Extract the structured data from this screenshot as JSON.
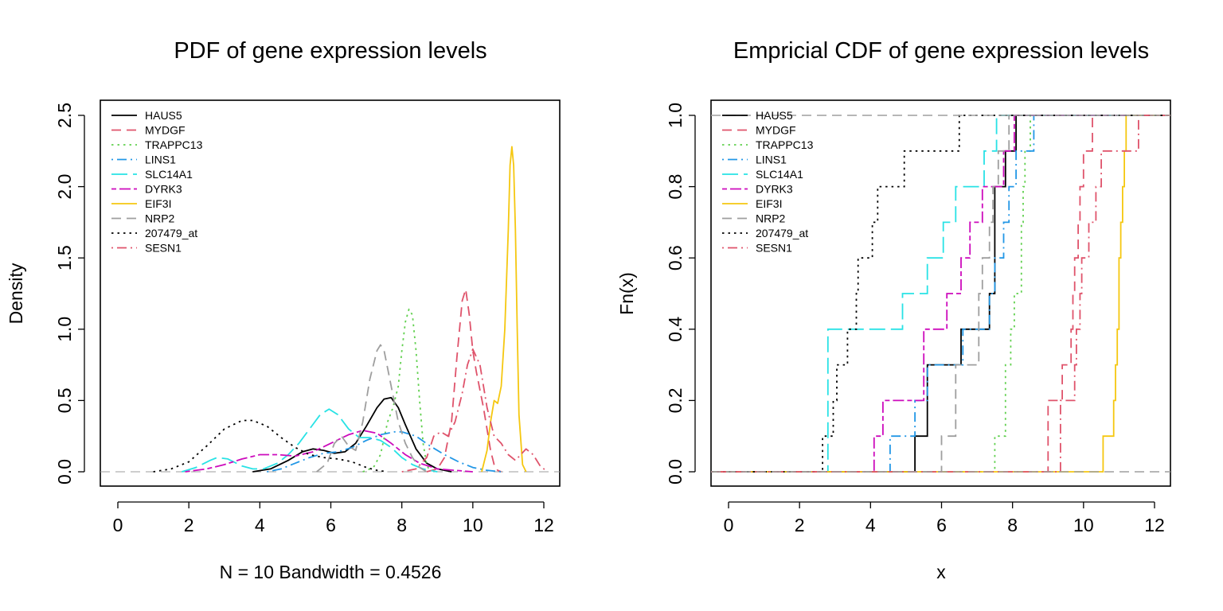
{
  "legend": [
    {
      "name": "HAUS5",
      "color": "#000000",
      "dash": "solid"
    },
    {
      "name": "MYDGF",
      "color": "#DF536B",
      "dash": "dashed"
    },
    {
      "name": "TRAPPC13",
      "color": "#61D04F",
      "dash": "dotted"
    },
    {
      "name": "LINS1",
      "color": "#2297E6",
      "dash": "dotdash"
    },
    {
      "name": "SLC14A1",
      "color": "#28E2E5",
      "dash": "longdash"
    },
    {
      "name": "DYRK3",
      "color": "#CD0BBC",
      "dash": "twodash"
    },
    {
      "name": "EIF3I",
      "color": "#F5C710",
      "dash": "solid"
    },
    {
      "name": "NRP2",
      "color": "#9E9E9E",
      "dash": "dashed"
    },
    {
      "name": "207479_at",
      "color": "#000000",
      "dash": "dotted"
    },
    {
      "name": "SESN1",
      "color": "#DF536B",
      "dash": "dotdash"
    }
  ],
  "chart_data": [
    {
      "type": "line",
      "title": "PDF of gene expression levels",
      "xlabel": "N = 10   Bandwidth = 0.4526",
      "ylabel": "Density",
      "xlim": [
        0,
        12
      ],
      "ylim": [
        0,
        2.5
      ],
      "xticks": [
        0,
        2,
        4,
        6,
        8,
        10,
        12
      ],
      "yticks": [
        0.0,
        0.5,
        1.0,
        1.5,
        2.0,
        2.5
      ],
      "ytick_labels": [
        "0.0",
        "0.5",
        "1.0",
        "1.5",
        "2.0",
        "2.5"
      ],
      "legend_position": "top-left",
      "series": [
        {
          "name": "HAUS5",
          "x": [
            3.8,
            4.3,
            4.8,
            5.2,
            5.5,
            5.8,
            6.1,
            6.4,
            6.7,
            7.0,
            7.3,
            7.5,
            7.7,
            7.9,
            8.1,
            8.4,
            8.7,
            9.0,
            9.4
          ],
          "y": [
            0,
            0.02,
            0.08,
            0.14,
            0.16,
            0.15,
            0.13,
            0.14,
            0.2,
            0.32,
            0.45,
            0.51,
            0.52,
            0.45,
            0.33,
            0.16,
            0.06,
            0.02,
            0
          ]
        },
        {
          "name": "MYDGF",
          "x": [
            8.7,
            9.0,
            9.2,
            9.4,
            9.55,
            9.7,
            9.8,
            9.9,
            10.0,
            10.1,
            10.3,
            10.5,
            10.6,
            10.7,
            10.8
          ],
          "y": [
            0,
            0.02,
            0.1,
            0.35,
            0.8,
            1.2,
            1.28,
            1.1,
            0.85,
            0.7,
            0.45,
            0.15,
            0.05,
            0.01,
            0
          ]
        },
        {
          "name": "TRAPPC13",
          "x": [
            6.9,
            7.2,
            7.4,
            7.6,
            7.75,
            7.9,
            8.0,
            8.1,
            8.2,
            8.3,
            8.4,
            8.5,
            8.6,
            8.7,
            8.8
          ],
          "y": [
            0,
            0.03,
            0.12,
            0.35,
            0.45,
            0.6,
            0.85,
            1.05,
            1.14,
            1.1,
            0.85,
            0.5,
            0.2,
            0.05,
            0
          ]
        },
        {
          "name": "LINS1",
          "x": [
            4.2,
            4.6,
            5.0,
            5.4,
            5.8,
            6.2,
            6.6,
            7.0,
            7.4,
            7.8,
            8.0,
            8.4,
            8.8,
            9.2,
            9.6,
            10.0,
            10.4,
            10.8
          ],
          "y": [
            0,
            0.02,
            0.06,
            0.1,
            0.13,
            0.14,
            0.17,
            0.22,
            0.26,
            0.28,
            0.28,
            0.25,
            0.18,
            0.12,
            0.07,
            0.03,
            0.01,
            0
          ]
        },
        {
          "name": "SLC14A1",
          "x": [
            1.8,
            2.2,
            2.6,
            2.8,
            3.1,
            3.5,
            3.8,
            4.1,
            4.5,
            4.8,
            5.1,
            5.4,
            5.7,
            5.95,
            6.2,
            6.5,
            6.8,
            7.1,
            7.4,
            7.7,
            8.0,
            8.3,
            8.6,
            9.0
          ],
          "y": [
            0,
            0.03,
            0.08,
            0.1,
            0.09,
            0.04,
            0.02,
            0.02,
            0.06,
            0.12,
            0.2,
            0.3,
            0.4,
            0.44,
            0.4,
            0.3,
            0.24,
            0.24,
            0.22,
            0.17,
            0.1,
            0.05,
            0.02,
            0
          ]
        },
        {
          "name": "DYRK3",
          "x": [
            1.9,
            2.5,
            3.0,
            3.5,
            4.0,
            4.5,
            5.0,
            5.5,
            6.0,
            6.5,
            6.9,
            7.3,
            7.7,
            8.1,
            8.5,
            9.0,
            9.5,
            10.0
          ],
          "y": [
            0,
            0.02,
            0.05,
            0.09,
            0.12,
            0.12,
            0.11,
            0.14,
            0.2,
            0.26,
            0.29,
            0.27,
            0.2,
            0.12,
            0.06,
            0.02,
            0.01,
            0
          ]
        },
        {
          "name": "EIF3I",
          "x": [
            10.25,
            10.4,
            10.5,
            10.6,
            10.7,
            10.8,
            10.9,
            11.0,
            11.05,
            11.1,
            11.15,
            11.2,
            11.25,
            11.3,
            11.4,
            11.5
          ],
          "y": [
            0,
            0.15,
            0.35,
            0.5,
            0.48,
            0.6,
            1.0,
            1.7,
            2.15,
            2.28,
            2.15,
            1.7,
            1.0,
            0.4,
            0.05,
            0
          ]
        },
        {
          "name": "NRP2",
          "x": [
            5.6,
            5.9,
            6.1,
            6.3,
            6.5,
            6.7,
            6.9,
            7.1,
            7.3,
            7.4,
            7.5,
            7.7,
            7.9,
            8.1,
            8.3,
            8.5,
            8.7
          ],
          "y": [
            0,
            0.06,
            0.2,
            0.25,
            0.18,
            0.15,
            0.35,
            0.65,
            0.85,
            0.89,
            0.85,
            0.6,
            0.35,
            0.2,
            0.1,
            0.03,
            0
          ]
        },
        {
          "name": "207479_at",
          "x": [
            1.0,
            1.5,
            2.0,
            2.5,
            3.0,
            3.5,
            3.8,
            4.2,
            4.6,
            5.0,
            5.4,
            5.8,
            6.2,
            6.6,
            7.0,
            7.3,
            7.6
          ],
          "y": [
            0,
            0.02,
            0.07,
            0.18,
            0.3,
            0.36,
            0.36,
            0.32,
            0.24,
            0.17,
            0.12,
            0.1,
            0.09,
            0.07,
            0.03,
            0.01,
            0
          ]
        },
        {
          "name": "SESN1",
          "x": [
            8.0,
            8.4,
            8.7,
            8.9,
            9.1,
            9.3,
            9.5,
            9.7,
            9.85,
            10.0,
            10.2,
            10.4,
            10.6,
            10.8,
            11.0,
            11.2,
            11.35,
            11.5,
            11.7,
            11.9,
            12.1
          ],
          "y": [
            0,
            0.02,
            0.1,
            0.25,
            0.28,
            0.25,
            0.35,
            0.55,
            0.75,
            0.86,
            0.75,
            0.45,
            0.25,
            0.2,
            0.12,
            0.08,
            0.12,
            0.16,
            0.12,
            0.04,
            0
          ]
        }
      ]
    },
    {
      "type": "line",
      "title": "Empricial CDF of gene expression levels",
      "xlabel": "x",
      "ylabel": "Fn(x)",
      "xlim": [
        0,
        12
      ],
      "ylim": [
        0,
        1
      ],
      "xticks": [
        0,
        2,
        4,
        6,
        8,
        10,
        12
      ],
      "yticks": [
        0.0,
        0.2,
        0.4,
        0.6,
        0.8,
        1.0
      ],
      "ytick_labels": [
        "0.0",
        "0.2",
        "0.4",
        "0.6",
        "0.8",
        "1.0"
      ],
      "legend_position": "top-left",
      "series": [
        {
          "name": "HAUS5",
          "x": [
            5.25,
            5.6,
            5.6,
            6.55,
            7.35,
            7.5,
            7.5,
            7.5,
            7.8,
            8.1
          ]
        },
        {
          "name": "MYDGF",
          "x": [
            9.0,
            9.0,
            9.4,
            9.65,
            9.7,
            9.75,
            9.85,
            9.9,
            10.0,
            10.25
          ]
        },
        {
          "name": "TRAPPC13",
          "x": [
            7.5,
            7.8,
            7.8,
            7.95,
            8.05,
            8.25,
            8.25,
            8.3,
            8.35,
            8.5
          ]
        },
        {
          "name": "LINS1",
          "x": [
            4.55,
            5.25,
            5.6,
            6.6,
            7.35,
            7.5,
            7.75,
            7.9,
            8.1,
            8.6
          ]
        },
        {
          "name": "SLC14A1",
          "x": [
            2.8,
            2.8,
            2.8,
            2.8,
            4.9,
            5.6,
            6.05,
            6.4,
            7.2,
            7.55
          ]
        },
        {
          "name": "DYRK3",
          "x": [
            4.1,
            4.35,
            5.5,
            5.5,
            6.15,
            6.55,
            6.8,
            7.15,
            7.75,
            8.05
          ]
        },
        {
          "name": "EIF3I",
          "x": [
            10.55,
            10.85,
            10.9,
            10.95,
            11.0,
            11.0,
            11.05,
            11.1,
            11.15,
            11.2
          ]
        },
        {
          "name": "NRP2",
          "x": [
            6.0,
            6.4,
            6.4,
            7.05,
            7.05,
            7.15,
            7.35,
            7.45,
            7.6,
            7.9
          ]
        },
        {
          "name": "207479_at",
          "x": [
            2.65,
            2.95,
            3.05,
            3.35,
            3.6,
            3.65,
            4.05,
            4.2,
            4.95,
            6.5
          ]
        },
        {
          "name": "SESN1",
          "x": [
            9.35,
            9.35,
            9.75,
            9.8,
            9.9,
            9.95,
            10.15,
            10.35,
            10.5,
            11.55
          ]
        }
      ]
    }
  ]
}
